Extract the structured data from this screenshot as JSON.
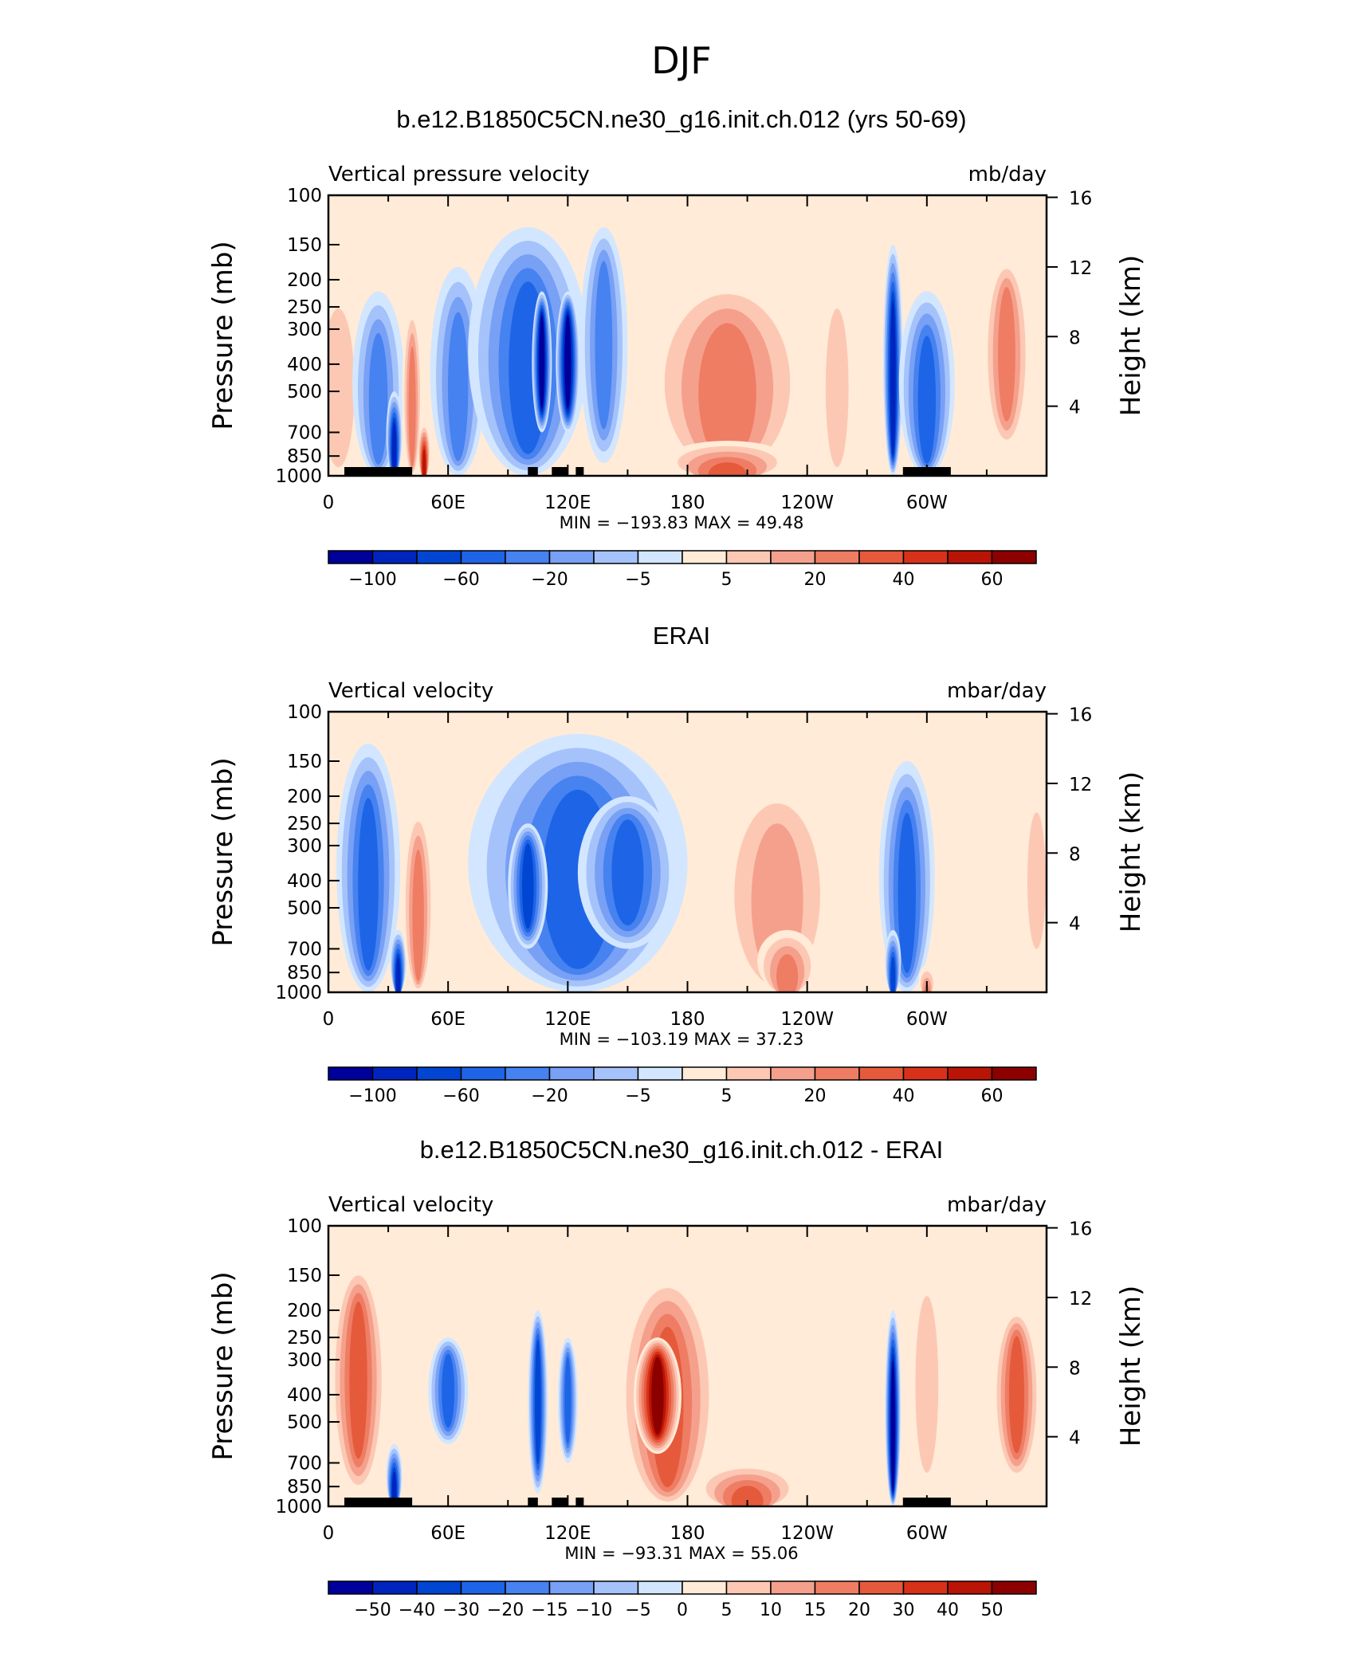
{
  "page_title": "DJF",
  "colors": {
    "wdiv": [
      "#00009a",
      "#0025be",
      "#0046d2",
      "#1e64e6",
      "#4682f0",
      "#78a0f5",
      "#a5c3fa",
      "#d2e6ff",
      "#ffebd7",
      "#fcc8b4",
      "#f5a08c",
      "#ee7d64",
      "#e65a3c",
      "#d73219",
      "#b91405",
      "#8c0000"
    ],
    "wdiff": [
      "#00009a",
      "#0025be",
      "#0046d2",
      "#1e64e6",
      "#4682f0",
      "#78a0f5",
      "#a5c3fa",
      "#d2e6ff",
      "#ffebd7",
      "#fcc8b4",
      "#f5a08c",
      "#ee7d64",
      "#e65a3c",
      "#d73219",
      "#b91405",
      "#8c0000"
    ]
  },
  "chart_data": [
    {
      "type": "heatmap",
      "title": "b.e12.B1850C5CN.ne30_g16.init.ch.012 (yrs 50-69)",
      "left_label": "Vertical pressure velocity",
      "right_label": "mb/day",
      "ylabel": "Pressure (mb)",
      "ylabel_right": "Height (km)",
      "x_ticks": [
        "0",
        "60E",
        "120E",
        "180",
        "120W",
        "60W"
      ],
      "y_ticks": [
        "100",
        "150",
        "200",
        "250",
        "300",
        "400",
        "500",
        "700",
        "850",
        "1000"
      ],
      "height_ticks": [
        "4",
        "8",
        "12",
        "16"
      ],
      "ylim": [
        1000,
        100
      ],
      "min_max_text": "MIN = −193.83   MAX =   49.48",
      "colorbar_labels": [
        "−100",
        "−60",
        "−20",
        "−5",
        "5",
        "20",
        "40",
        "60"
      ],
      "palette": "wdiv",
      "field": [
        {
          "pos": 5,
          "ext": 35,
          "w": 14,
          "ptop": 200,
          "pbot": 1000,
          "val": 6,
          "shape": "col"
        },
        {
          "pos": 25,
          "ext": 35,
          "w": 13,
          "ptop": 220,
          "pbot": 1000,
          "val": -38,
          "shape": "col"
        },
        {
          "pos": 33,
          "ext": 35,
          "w": 4,
          "ptop": 500,
          "pbot": 1000,
          "val": -95,
          "shape": "col"
        },
        {
          "pos": 42,
          "ext": 35,
          "w": 5,
          "ptop": 250,
          "pbot": 1000,
          "val": 28,
          "shape": "col"
        },
        {
          "pos": 48,
          "ext": 35,
          "w": 3,
          "ptop": 650,
          "pbot": 1000,
          "val": 55,
          "shape": "col"
        },
        {
          "pos": 65,
          "ext": 35,
          "w": 14,
          "ptop": 180,
          "pbot": 1000,
          "val": -28,
          "shape": "col"
        },
        {
          "pos": 100,
          "ext": 35,
          "w": 30,
          "ptop": 130,
          "pbot": 1000,
          "val": -48,
          "shape": "col"
        },
        {
          "pos": 107,
          "ext": 35,
          "w": 5,
          "ptop": 220,
          "pbot": 700,
          "val": -110,
          "shape": "col"
        },
        {
          "pos": 120,
          "ext": 35,
          "w": 6,
          "ptop": 220,
          "pbot": 700,
          "val": -110,
          "shape": "col"
        },
        {
          "pos": 138,
          "ext": 35,
          "w": 12,
          "ptop": 130,
          "pbot": 900,
          "val": -22,
          "shape": "col"
        },
        {
          "pos": 200,
          "ext": 35,
          "w": 40,
          "ptop": 200,
          "pbot": 1000,
          "val": 26,
          "shape": "col"
        },
        {
          "pos": 200,
          "ext": 35,
          "w": 30,
          "ptop": 750,
          "pbot": 1000,
          "val": 38,
          "shape": "col"
        },
        {
          "pos": 255,
          "ext": 35,
          "w": 10,
          "ptop": 200,
          "pbot": 1000,
          "val": 9,
          "shape": "col"
        },
        {
          "pos": 283,
          "ext": 35,
          "w": 5,
          "ptop": 150,
          "pbot": 1000,
          "val": -90,
          "shape": "col"
        },
        {
          "pos": 300,
          "ext": 35,
          "w": 14,
          "ptop": 220,
          "pbot": 1000,
          "val": -40,
          "shape": "col"
        },
        {
          "pos": 340,
          "ext": 35,
          "w": 12,
          "ptop": 170,
          "pbot": 800,
          "val": 28,
          "shape": "col"
        }
      ],
      "land_mask": [
        [
          8,
          42
        ],
        [
          100,
          105
        ],
        [
          112,
          120
        ],
        [
          124,
          128
        ],
        [
          288,
          312
        ]
      ]
    },
    {
      "type": "heatmap",
      "title": "ERAI",
      "left_label": "Vertical velocity",
      "right_label": "mbar/day",
      "ylabel": "Pressure (mb)",
      "ylabel_right": "Height (km)",
      "x_ticks": [
        "0",
        "60E",
        "120E",
        "180",
        "120W",
        "60W"
      ],
      "y_ticks": [
        "100",
        "150",
        "200",
        "250",
        "300",
        "400",
        "500",
        "700",
        "850",
        "1000"
      ],
      "height_ticks": [
        "4",
        "8",
        "12",
        "16"
      ],
      "ylim": [
        1000,
        100
      ],
      "min_max_text": "MIN = −103.19   MAX =   37.23",
      "colorbar_labels": [
        "−100",
        "−60",
        "−20",
        "−5",
        "5",
        "20",
        "40",
        "60"
      ],
      "palette": "wdiv",
      "field": [
        {
          "pos": 20,
          "ext": 35,
          "w": 16,
          "ptop": 130,
          "pbot": 1000,
          "val": -45,
          "shape": "col"
        },
        {
          "pos": 35,
          "ext": 35,
          "w": 4,
          "ptop": 600,
          "pbot": 1000,
          "val": -80,
          "shape": "col"
        },
        {
          "pos": 45,
          "ext": 35,
          "w": 8,
          "ptop": 220,
          "pbot": 1000,
          "val": 22,
          "shape": "col"
        },
        {
          "pos": 125,
          "ext": 35,
          "w": 55,
          "ptop": 120,
          "pbot": 1000,
          "val": -48,
          "shape": "col"
        },
        {
          "pos": 100,
          "ext": 35,
          "w": 10,
          "ptop": 250,
          "pbot": 700,
          "val": -65,
          "shape": "col"
        },
        {
          "pos": 150,
          "ext": 35,
          "w": 25,
          "ptop": 200,
          "pbot": 700,
          "val": -58,
          "shape": "col"
        },
        {
          "pos": 225,
          "ext": 35,
          "w": 30,
          "ptop": 180,
          "pbot": 1000,
          "val": 18,
          "shape": "col"
        },
        {
          "pos": 230,
          "ext": 35,
          "w": 15,
          "ptop": 600,
          "pbot": 1000,
          "val": 22,
          "shape": "col"
        },
        {
          "pos": 290,
          "ext": 35,
          "w": 14,
          "ptop": 150,
          "pbot": 1000,
          "val": -42,
          "shape": "col"
        },
        {
          "pos": 283,
          "ext": 35,
          "w": 4,
          "ptop": 600,
          "pbot": 1000,
          "val": -70,
          "shape": "col"
        },
        {
          "pos": 300,
          "ext": 35,
          "w": 4,
          "ptop": 800,
          "pbot": 1000,
          "val": 30,
          "shape": "col"
        },
        {
          "pos": 355,
          "ext": 35,
          "w": 8,
          "ptop": 200,
          "pbot": 800,
          "val": 10,
          "shape": "col"
        }
      ],
      "land_mask": []
    },
    {
      "type": "heatmap",
      "title": "b.e12.B1850C5CN.ne30_g16.init.ch.012 - ERAI",
      "left_label": "Vertical velocity",
      "right_label": "mbar/day",
      "ylabel": "Pressure (mb)",
      "ylabel_right": "Height (km)",
      "x_ticks": [
        "0",
        "60E",
        "120E",
        "180",
        "120W",
        "60W"
      ],
      "y_ticks": [
        "100",
        "150",
        "200",
        "250",
        "300",
        "400",
        "500",
        "700",
        "850",
        "1000"
      ],
      "height_ticks": [
        "4",
        "8",
        "12",
        "16"
      ],
      "ylim": [
        1000,
        100
      ],
      "min_max_text": "MIN = −93.31   MAX =   55.06",
      "colorbar_labels": [
        "−50",
        "−40",
        "−30",
        "−20",
        "−15",
        "−10",
        "−5",
        "0",
        "5",
        "10",
        "15",
        "20",
        "30",
        "40",
        "50"
      ],
      "palette": "wdiff",
      "field": [
        {
          "pos": 15,
          "ext": 35,
          "w": 14,
          "ptop": 140,
          "pbot": 900,
          "val": 28,
          "shape": "col"
        },
        {
          "pos": 33,
          "ext": 35,
          "w": 4,
          "ptop": 600,
          "pbot": 1000,
          "val": -40,
          "shape": "col"
        },
        {
          "pos": 60,
          "ext": 35,
          "w": 10,
          "ptop": 250,
          "pbot": 600,
          "val": -22,
          "shape": "col"
        },
        {
          "pos": 105,
          "ext": 35,
          "w": 5,
          "ptop": 200,
          "pbot": 900,
          "val": -35,
          "shape": "col"
        },
        {
          "pos": 120,
          "ext": 35,
          "w": 5,
          "ptop": 250,
          "pbot": 700,
          "val": -28,
          "shape": "col"
        },
        {
          "pos": 170,
          "ext": 35,
          "w": 25,
          "ptop": 150,
          "pbot": 1000,
          "val": 30,
          "shape": "col"
        },
        {
          "pos": 165,
          "ext": 35,
          "w": 12,
          "ptop": 250,
          "pbot": 650,
          "val": 55,
          "shape": "col"
        },
        {
          "pos": 210,
          "ext": 35,
          "w": 25,
          "ptop": 700,
          "pbot": 1000,
          "val": 22,
          "shape": "col"
        },
        {
          "pos": 283,
          "ext": 35,
          "w": 4,
          "ptop": 200,
          "pbot": 1000,
          "val": -60,
          "shape": "col"
        },
        {
          "pos": 300,
          "ext": 35,
          "w": 10,
          "ptop": 150,
          "pbot": 900,
          "val": 10,
          "shape": "col"
        },
        {
          "pos": 345,
          "ext": 35,
          "w": 12,
          "ptop": 200,
          "pbot": 800,
          "val": 22,
          "shape": "col"
        }
      ],
      "land_mask": [
        [
          8,
          42
        ],
        [
          100,
          105
        ],
        [
          112,
          120
        ],
        [
          124,
          128
        ],
        [
          288,
          312
        ]
      ]
    }
  ]
}
